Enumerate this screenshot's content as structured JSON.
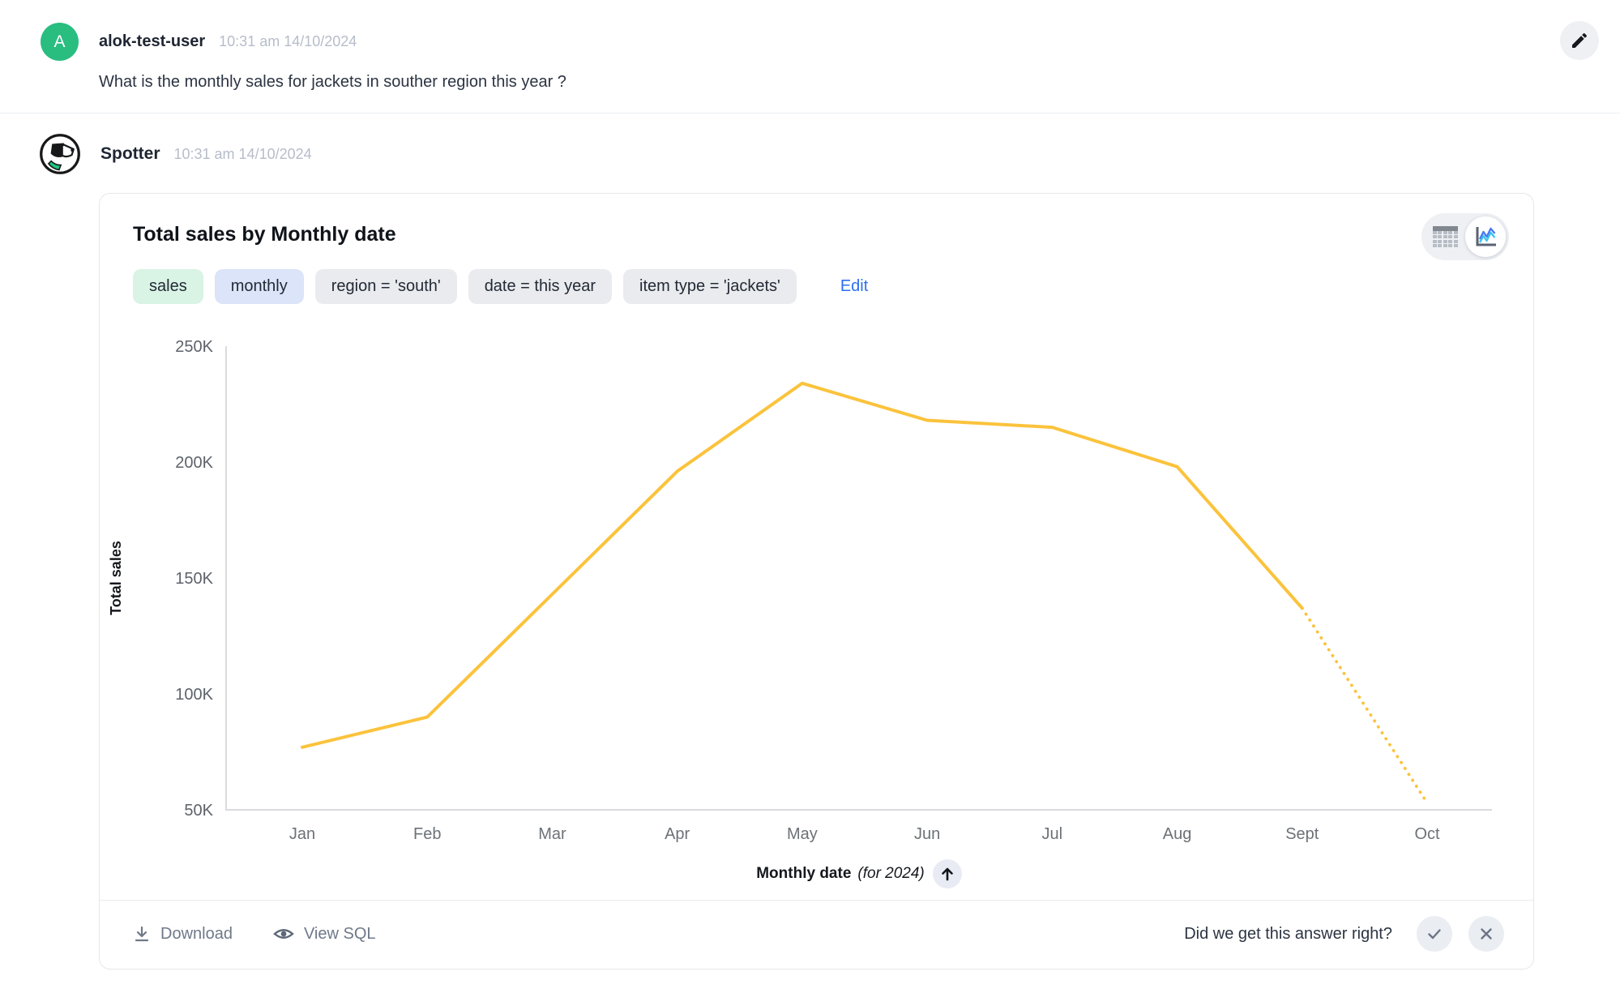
{
  "user_message": {
    "avatar_initial": "A",
    "username": "alok-test-user",
    "timestamp": "10:31 am 14/10/2024",
    "question": "What is the monthly sales for jackets in souther region this year ?"
  },
  "bot_message": {
    "name": "Spotter",
    "timestamp": "10:31 am 14/10/2024"
  },
  "card": {
    "title": "Total sales by Monthly date",
    "chips": [
      {
        "label": "sales",
        "type": "measure"
      },
      {
        "label": "monthly",
        "type": "time"
      },
      {
        "label": "region = 'south'",
        "type": "filter"
      },
      {
        "label": "date = this year",
        "type": "filter"
      },
      {
        "label": "item type = 'jackets'",
        "type": "filter"
      }
    ],
    "edit_label": "Edit",
    "view_toggle": {
      "options": [
        "table",
        "chart"
      ],
      "selected": "chart"
    },
    "footer": {
      "download_label": "Download",
      "view_sql_label": "View SQL",
      "feedback_prompt": "Did we get this answer right?"
    }
  },
  "chart_data": {
    "type": "line",
    "title": "Total sales by Monthly date",
    "x": [
      "Jan",
      "Feb",
      "Mar",
      "Apr",
      "May",
      "Jun",
      "Jul",
      "Aug",
      "Sept",
      "Oct"
    ],
    "series": [
      {
        "name": "Total sales",
        "values": [
          77000,
          90000,
          143000,
          196000,
          234000,
          218000,
          215000,
          198000,
          137000,
          53000
        ]
      }
    ],
    "xlabel": "Monthly date",
    "xlabel_suffix": "(for 2024)",
    "ylabel": "Total sales",
    "ylim": [
      50000,
      250000
    ],
    "yticks": [
      {
        "value": 250000,
        "label": "250K"
      },
      {
        "value": 200000,
        "label": "200K"
      },
      {
        "value": 150000,
        "label": "150K"
      },
      {
        "value": 100000,
        "label": "100K"
      },
      {
        "value": 50000,
        "label": "50K"
      }
    ],
    "dashed_from_index": 8,
    "line_color": "#FBC33C",
    "axis_color": "#d9dbdf",
    "tick_label_color": "#5d636b",
    "x_label_color": "#6c7278",
    "grid": false,
    "legend": "none"
  }
}
